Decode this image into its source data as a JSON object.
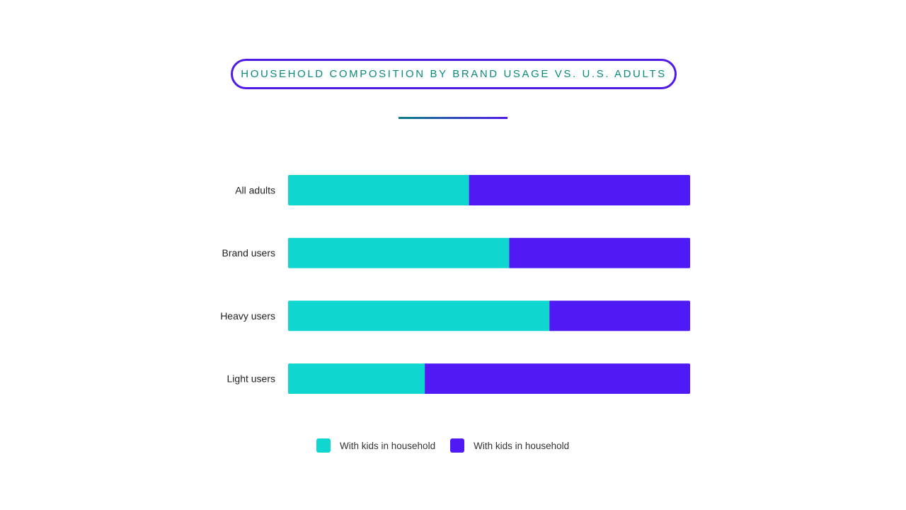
{
  "title": "HOUSEHOLD COMPOSITION BY BRAND USAGE VS. U.S. ADULTS",
  "colors": {
    "series1": "#0fd6ce",
    "series2": "#4f1af5",
    "title_text": "#0b8a7c",
    "title_border": "#4f1ae8"
  },
  "chart_data": {
    "type": "bar",
    "orientation": "horizontal",
    "stacked": true,
    "categories": [
      "All adults",
      "Brand users",
      "Heavy users",
      "Light users"
    ],
    "series": [
      {
        "name": "With kids in household",
        "values": [
          45,
          55,
          65,
          34
        ]
      },
      {
        "name": "With kids in household",
        "values": [
          55,
          45,
          35,
          66
        ]
      }
    ],
    "xlim": [
      0,
      100
    ],
    "grid": false,
    "legend_position": "bottom"
  }
}
